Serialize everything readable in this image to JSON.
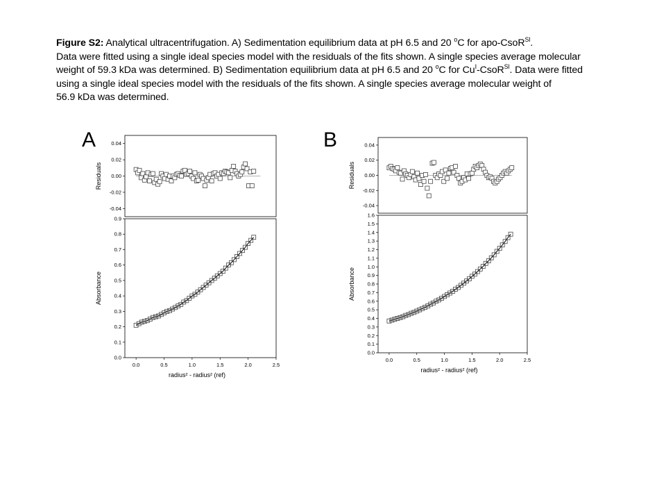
{
  "caption": {
    "label": "Figure S2:",
    "line1": " Analytical ultracentrifugation. A) Sedimentation equilibrium data at pH 6.5 and 20 ",
    "line1_deg": "o",
    "line1_tail": "C for apo-CsoR",
    "line1_sup": "Sl",
    "line1_end": ".",
    "line2": "Data were fitted using a single ideal species model with the residuals of the fits shown. A single species average molecular",
    "line3": "weight of 59.3 kDa was determined. B) Sedimentation equilibrium data at pH 6.5 and 20 ",
    "line3_deg": "o",
    "line3_mid": "C for Cu",
    "line3_sup1": "I",
    "line3_mid2": "-CsoR",
    "line3_sup2": "Sl",
    "line3_end": ". Data were fitted",
    "line4": "using a single ideal species model with the residuals of the fits shown. A single species average molecular weight of",
    "line5": "56.9 kDa was determined."
  },
  "panels": [
    {
      "letter": "A"
    },
    {
      "letter": "B"
    }
  ],
  "chart_data": [
    {
      "type": "scatter",
      "panel": "A",
      "title": "",
      "xlabel": "radius² - radius² (ref)",
      "xticks": [
        "0.0",
        "0.5",
        "1.0",
        "1.5",
        "2.0",
        "2.5"
      ],
      "xlim": [
        -0.2,
        2.5
      ],
      "residuals": {
        "ylabel": "Residuals",
        "ylim": [
          -0.05,
          0.05
        ],
        "yticks": [
          "-0.04",
          "-0.02",
          "0.00",
          "0.02",
          "0.04"
        ],
        "x": [
          0.0,
          0.03,
          0.06,
          0.09,
          0.12,
          0.15,
          0.18,
          0.21,
          0.24,
          0.27,
          0.3,
          0.33,
          0.36,
          0.39,
          0.42,
          0.45,
          0.48,
          0.51,
          0.54,
          0.57,
          0.6,
          0.63,
          0.66,
          0.69,
          0.72,
          0.75,
          0.78,
          0.81,
          0.84,
          0.87,
          0.9,
          0.93,
          0.96,
          0.99,
          1.02,
          1.05,
          1.08,
          1.11,
          1.14,
          1.17,
          1.2,
          1.23,
          1.26,
          1.29,
          1.32,
          1.35,
          1.38,
          1.41,
          1.44,
          1.47,
          1.5,
          1.53,
          1.56,
          1.59,
          1.62,
          1.65,
          1.68,
          1.71,
          1.74,
          1.77,
          1.8,
          1.83,
          1.86,
          1.89,
          1.92,
          1.95,
          1.98,
          2.01,
          2.04,
          2.07,
          2.1
        ],
        "y": [
          0.008,
          0.004,
          0.007,
          -0.002,
          0.003,
          -0.005,
          -0.001,
          0.004,
          -0.006,
          0.002,
          0.003,
          -0.008,
          -0.004,
          -0.01,
          -0.007,
          0.003,
          0.0,
          -0.003,
          0.002,
          -0.004,
          0.0,
          -0.006,
          0.0,
          -0.002,
          0.002,
          0.003,
          0.001,
          0.0,
          0.006,
          0.007,
          0.002,
          0.003,
          0.006,
          0.0,
          -0.003,
          0.004,
          -0.006,
          -0.005,
          0.002,
          0.0,
          -0.003,
          -0.012,
          -0.005,
          -0.002,
          0.002,
          -0.006,
          0.003,
          0.004,
          0.0,
          0.002,
          -0.003,
          0.004,
          0.003,
          0.006,
          0.005,
          0.004,
          -0.002,
          0.007,
          0.012,
          0.006,
          0.003,
          0.0,
          0.002,
          0.005,
          0.011,
          0.015,
          0.009,
          -0.012,
          0.005,
          -0.012,
          0.006
        ]
      },
      "main": {
        "ylabel": "Absorbance",
        "ylim": [
          0.0,
          0.9
        ],
        "yticks": [
          "0.0",
          "0.1",
          "0.2",
          "0.3",
          "0.4",
          "0.5",
          "0.6",
          "0.7",
          "0.8",
          "0.9"
        ],
        "x": [
          0.0,
          0.05,
          0.1,
          0.15,
          0.2,
          0.25,
          0.3,
          0.35,
          0.4,
          0.45,
          0.5,
          0.55,
          0.6,
          0.65,
          0.7,
          0.75,
          0.8,
          0.85,
          0.9,
          0.95,
          1.0,
          1.05,
          1.1,
          1.15,
          1.2,
          1.25,
          1.3,
          1.35,
          1.4,
          1.45,
          1.5,
          1.55,
          1.6,
          1.65,
          1.7,
          1.75,
          1.8,
          1.85,
          1.9,
          1.95,
          2.0,
          2.05,
          2.1
        ],
        "y": [
          0.21,
          0.22,
          0.23,
          0.235,
          0.24,
          0.25,
          0.26,
          0.265,
          0.27,
          0.28,
          0.29,
          0.3,
          0.305,
          0.315,
          0.325,
          0.335,
          0.345,
          0.36,
          0.37,
          0.385,
          0.4,
          0.41,
          0.425,
          0.44,
          0.455,
          0.47,
          0.485,
          0.5,
          0.515,
          0.53,
          0.545,
          0.56,
          0.58,
          0.6,
          0.615,
          0.635,
          0.655,
          0.675,
          0.695,
          0.715,
          0.74,
          0.76,
          0.78
        ]
      }
    },
    {
      "type": "scatter",
      "panel": "B",
      "title": "",
      "xlabel": "radius² - radius² (ref)",
      "xticks": [
        "0.0",
        "0.5",
        "1.0",
        "1.5",
        "2.0",
        "2.5"
      ],
      "xlim": [
        -0.2,
        2.5
      ],
      "residuals": {
        "ylabel": "Residuals",
        "ylim": [
          -0.05,
          0.05
        ],
        "yticks": [
          "-0.04",
          "-0.02",
          "0.00",
          "0.02",
          "0.04"
        ],
        "x": [
          0.0,
          0.03,
          0.06,
          0.09,
          0.12,
          0.15,
          0.18,
          0.21,
          0.24,
          0.27,
          0.3,
          0.33,
          0.36,
          0.39,
          0.42,
          0.45,
          0.48,
          0.51,
          0.54,
          0.57,
          0.6,
          0.63,
          0.66,
          0.69,
          0.72,
          0.75,
          0.78,
          0.81,
          0.84,
          0.87,
          0.9,
          0.93,
          0.96,
          0.99,
          1.02,
          1.05,
          1.08,
          1.11,
          1.14,
          1.17,
          1.2,
          1.23,
          1.26,
          1.29,
          1.32,
          1.35,
          1.38,
          1.41,
          1.44,
          1.47,
          1.5,
          1.53,
          1.56,
          1.59,
          1.62,
          1.65,
          1.68,
          1.71,
          1.74,
          1.77,
          1.8,
          1.83,
          1.86,
          1.89,
          1.92,
          1.95,
          1.98,
          2.01,
          2.04,
          2.07,
          2.1,
          2.13,
          2.16,
          2.19,
          2.22
        ],
        "y": [
          0.01,
          0.012,
          0.009,
          0.008,
          0.006,
          0.01,
          0.004,
          0.003,
          -0.005,
          0.006,
          0.002,
          0.0,
          -0.003,
          0.001,
          0.005,
          -0.002,
          -0.006,
          0.003,
          -0.004,
          -0.012,
          0.0,
          -0.008,
          0.001,
          -0.017,
          -0.027,
          -0.008,
          0.016,
          0.017,
          0.0,
          -0.003,
          0.002,
          0.0,
          0.005,
          -0.008,
          0.007,
          -0.004,
          0.003,
          0.009,
          0.01,
          0.004,
          0.012,
          0.0,
          -0.004,
          -0.01,
          -0.008,
          -0.003,
          -0.006,
          0.002,
          -0.004,
          0.002,
          0.003,
          0.008,
          0.012,
          0.01,
          0.013,
          0.015,
          0.013,
          0.008,
          0.004,
          0.0,
          -0.003,
          -0.002,
          -0.004,
          -0.008,
          -0.01,
          -0.008,
          -0.005,
          -0.003,
          0.0,
          0.003,
          0.005,
          0.003,
          0.006,
          0.008,
          0.01
        ]
      },
      "main": {
        "ylabel": "Absorbance",
        "ylim": [
          0.0,
          1.6
        ],
        "yticks": [
          "0.0",
          "0.1",
          "0.2",
          "0.3",
          "0.4",
          "0.5",
          "0.6",
          "0.7",
          "0.8",
          "0.9",
          "1.0",
          "1.1",
          "1.2",
          "1.3",
          "1.4",
          "1.5",
          "1.6"
        ],
        "x": [
          0.0,
          0.05,
          0.1,
          0.15,
          0.2,
          0.25,
          0.3,
          0.35,
          0.4,
          0.45,
          0.5,
          0.55,
          0.6,
          0.65,
          0.7,
          0.75,
          0.8,
          0.85,
          0.9,
          0.95,
          1.0,
          1.05,
          1.1,
          1.15,
          1.2,
          1.25,
          1.3,
          1.35,
          1.4,
          1.45,
          1.5,
          1.55,
          1.6,
          1.65,
          1.7,
          1.75,
          1.8,
          1.85,
          1.9,
          1.95,
          2.0,
          2.05,
          2.1,
          2.15,
          2.2
        ],
        "y": [
          0.37,
          0.38,
          0.39,
          0.4,
          0.41,
          0.42,
          0.435,
          0.445,
          0.46,
          0.47,
          0.485,
          0.5,
          0.515,
          0.53,
          0.545,
          0.565,
          0.58,
          0.6,
          0.615,
          0.635,
          0.655,
          0.675,
          0.695,
          0.715,
          0.74,
          0.76,
          0.785,
          0.81,
          0.835,
          0.86,
          0.89,
          0.915,
          0.945,
          0.975,
          1.005,
          1.04,
          1.07,
          1.105,
          1.14,
          1.18,
          1.215,
          1.255,
          1.295,
          1.34,
          1.38
        ]
      }
    }
  ]
}
